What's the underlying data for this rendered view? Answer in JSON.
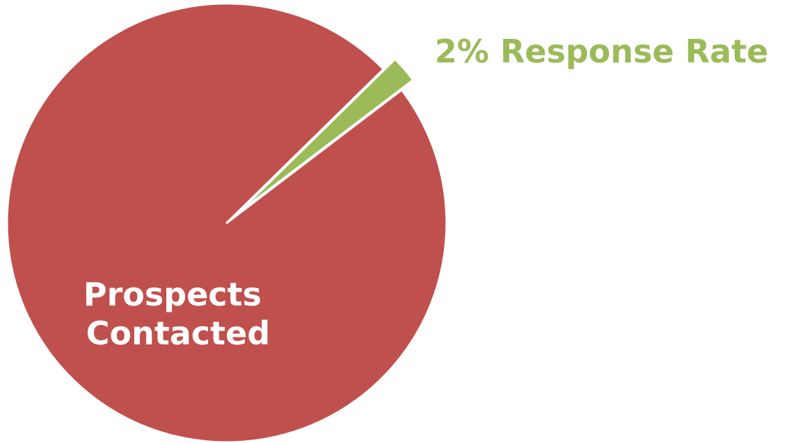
{
  "chart_data": {
    "type": "pie",
    "slices": [
      {
        "label_lines": [
          "Prospects",
          "Contacted"
        ],
        "value": 98,
        "color": "#C0504D",
        "label_color": "#FFFFFF"
      },
      {
        "label_lines": [
          "2% Response Rate"
        ],
        "value": 2,
        "color": "#9BBB59",
        "label_color": "#9BBB59",
        "exploded": true
      }
    ],
    "legend": "none"
  }
}
